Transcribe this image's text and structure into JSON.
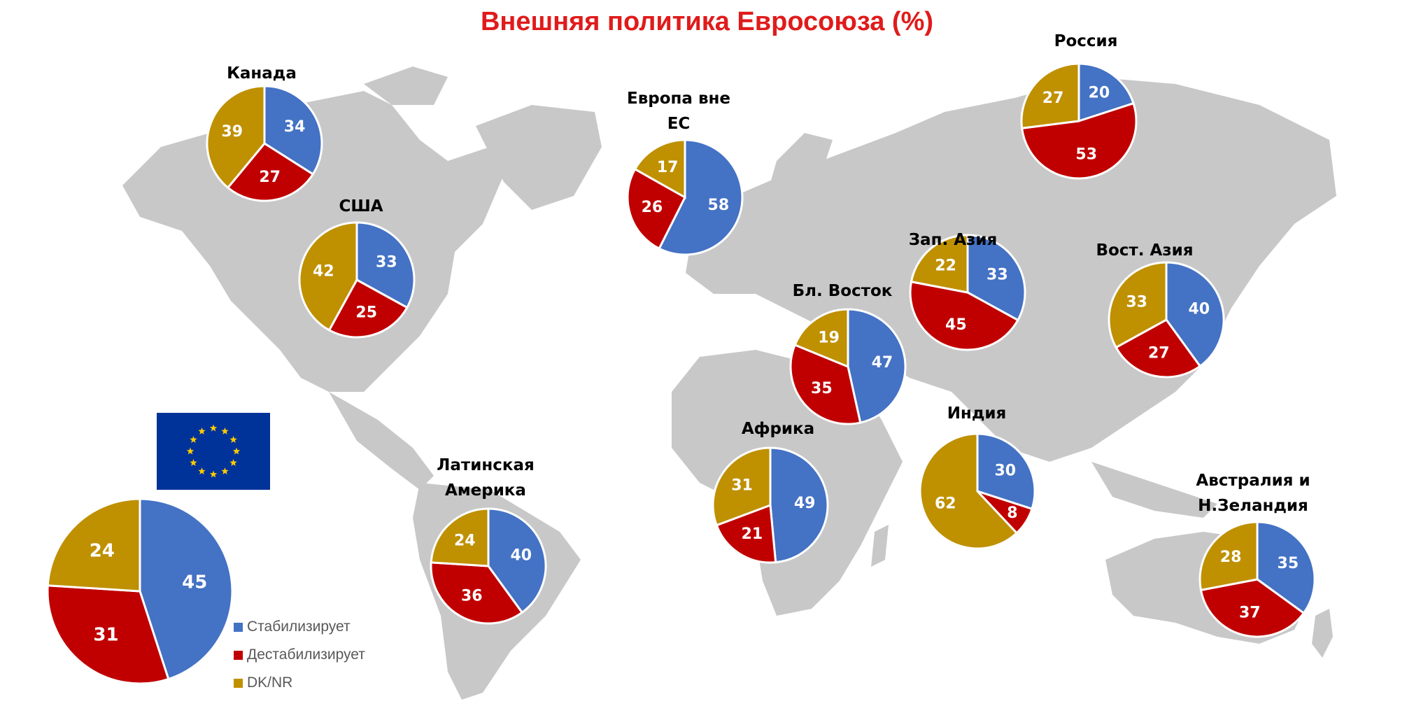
{
  "title": "Внешняя политика Евросоюза (%)",
  "colors": {
    "stabilizes": "#4472c4",
    "destabilizes": "#c00000",
    "dknr": "#bf9000",
    "title": "#e01b1b",
    "map": "#c8c8c8"
  },
  "legend": {
    "items": [
      {
        "label": "Стабилизирует",
        "color": "#4472c4"
      },
      {
        "label": "Дестабилизирует",
        "color": "#c00000"
      },
      {
        "label": "DK/NR",
        "color": "#bf9000"
      }
    ]
  },
  "eu_flag_icon": "eu-flag-icon",
  "chart_data": {
    "type": "pie",
    "categories": [
      "Стабилизирует",
      "Дестабилизирует",
      "DK/NR"
    ],
    "series": [
      {
        "name": "",
        "values": [
          45,
          31,
          24
        ]
      },
      {
        "name": "Канада",
        "values": [
          34,
          27,
          39
        ]
      },
      {
        "name": "США",
        "values": [
          33,
          25,
          42
        ]
      },
      {
        "name": "Европа вне ЕС",
        "values": [
          58,
          26,
          17
        ]
      },
      {
        "name": "Россия",
        "values": [
          20,
          53,
          27
        ]
      },
      {
        "name": "Зап. Азия",
        "values": [
          33,
          45,
          22
        ]
      },
      {
        "name": "Бл. Восток",
        "values": [
          47,
          35,
          19
        ]
      },
      {
        "name": "Вост. Азия",
        "values": [
          40,
          27,
          33
        ]
      },
      {
        "name": "Индия",
        "values": [
          30,
          8,
          62
        ]
      },
      {
        "name": "Африка",
        "values": [
          49,
          21,
          31
        ]
      },
      {
        "name": "Латинская Америка",
        "values": [
          40,
          36,
          24
        ]
      },
      {
        "name": "Австралия и Н.Зеландия",
        "values": [
          35,
          37,
          28
        ]
      }
    ]
  }
}
